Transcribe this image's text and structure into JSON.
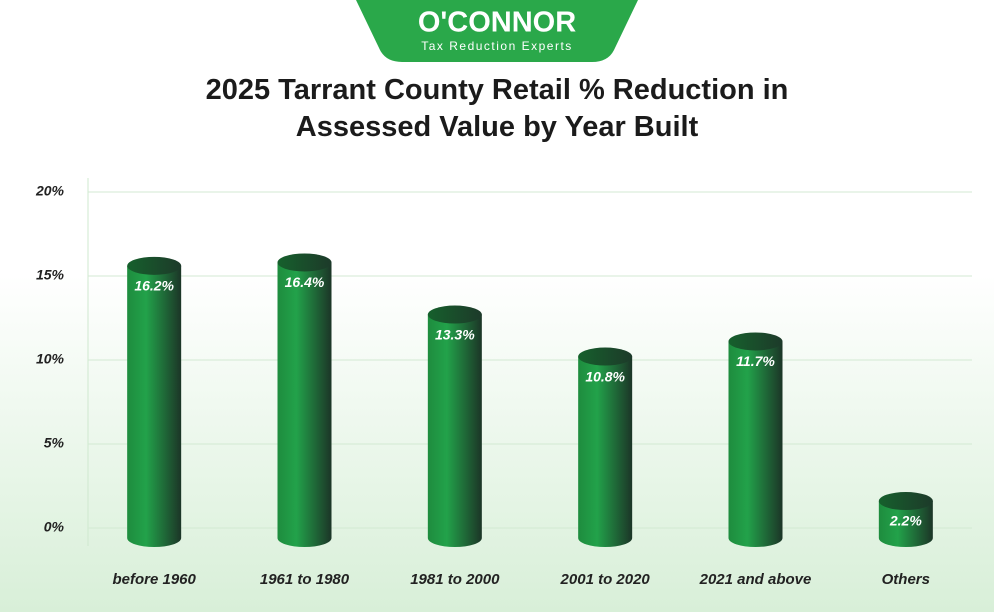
{
  "logo": {
    "name": "O'CONNOR",
    "tagline": "Tax Reduction Experts"
  },
  "chart_data": {
    "type": "bar",
    "title": "2025 Tarrant County Retail % Reduction in Assessed Value by Year Built",
    "categories": [
      "before 1960",
      "1961 to 1980",
      "1981 to 2000",
      "2001 to 2020",
      "2021 and above",
      "Others"
    ],
    "values": [
      16.2,
      16.4,
      13.3,
      10.8,
      11.7,
      2.2
    ],
    "value_labels": [
      "16.2%",
      "16.4%",
      "13.3%",
      "10.8%",
      "11.7%",
      "2.2%"
    ],
    "color": "#22a24a",
    "ylim": [
      0,
      20
    ],
    "yticks": [
      {
        "value": 0,
        "label": "0%"
      },
      {
        "value": 5,
        "label": "5%"
      },
      {
        "value": 10,
        "label": "10%"
      },
      {
        "value": 15,
        "label": "15%"
      },
      {
        "value": 20,
        "label": "20%"
      }
    ],
    "grid": true
  }
}
